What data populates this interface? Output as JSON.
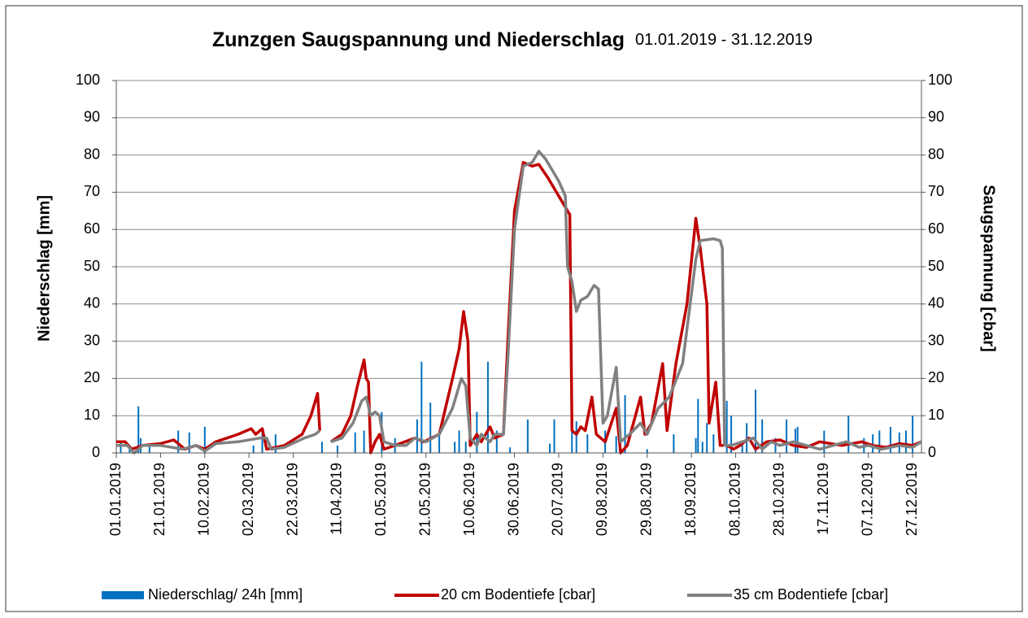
{
  "chart_data": {
    "type": "combo",
    "title": "Zunzgen Saugspannung und Niederschlag",
    "subtitle": "01.01.2019 - 31.12.2019",
    "ylabel": "Niederschlag [mm]",
    "y2label": "Saugspannung [cbar]",
    "xlim": [
      "01.01.2019",
      "31.12.2019"
    ],
    "xticks": [
      "01.01.2019",
      "21.01.2019",
      "10.02.2019",
      "02.03.2019",
      "22.03.2019",
      "11.04.2019",
      "01.05.2019",
      "21.05.2019",
      "10.06.2019",
      "30.06.2019",
      "20.07.2019",
      "09.08.2019",
      "29.08.2019",
      "18.09.2019",
      "08.10.2019",
      "28.10.2019",
      "17.11.2019",
      "07.12.2019",
      "27.12.2019"
    ],
    "ylim": [
      0,
      100
    ],
    "yticks": [
      0,
      10,
      20,
      30,
      40,
      50,
      60,
      70,
      80,
      90,
      100
    ],
    "y2lim": [
      0,
      100
    ],
    "y2ticks": [
      0,
      10,
      20,
      30,
      40,
      50,
      60,
      70,
      80,
      90,
      100
    ],
    "grid": true,
    "legend": "bottom",
    "series": [
      {
        "name": "Niederschlag/ 24h [mm]",
        "type": "bar",
        "color": "#0070c0",
        "x": [
          "03.01.2019",
          "07.01.2019",
          "11.01.2019",
          "12.01.2019",
          "16.01.2019",
          "29.01.2019",
          "03.02.2019",
          "10.02.2019",
          "04.03.2019",
          "08.03.2019",
          "14.03.2019",
          "04.04.2019",
          "11.04.2019",
          "19.04.2019",
          "23.04.2019",
          "01.05.2019",
          "07.05.2019",
          "17.05.2019",
          "19.05.2019",
          "23.05.2019",
          "27.05.2019",
          "03.06.2019",
          "05.06.2019",
          "08.06.2019",
          "13.06.2019",
          "18.06.2019",
          "22.06.2019",
          "28.06.2019",
          "06.07.2019",
          "16.07.2019",
          "18.07.2019",
          "26.07.2019",
          "28.07.2019",
          "02.08.2019",
          "10.08.2019",
          "15.08.2019",
          "19.08.2019",
          "29.08.2019",
          "10.09.2019",
          "20.09.2019",
          "21.09.2019",
          "23.09.2019",
          "25.09.2019",
          "28.09.2019",
          "04.10.2019",
          "06.10.2019",
          "11.10.2019",
          "13.10.2019",
          "17.10.2019",
          "20.10.2019",
          "26.10.2019",
          "31.10.2019",
          "04.11.2019",
          "05.11.2019",
          "17.11.2019",
          "28.11.2019",
          "05.12.2019",
          "09.12.2019",
          "12.12.2019",
          "17.12.2019",
          "21.12.2019",
          "24.12.2019",
          "27.12.2019"
        ],
        "values": [
          3,
          2,
          12.5,
          4,
          2,
          6,
          5.5,
          7,
          2,
          6.5,
          5,
          3,
          2,
          5.5,
          6,
          11,
          4,
          9,
          24.5,
          13.5,
          6,
          3,
          6,
          3,
          11,
          24.5,
          6,
          1.5,
          9,
          2.5,
          9,
          6,
          8.5,
          5,
          6,
          4.5,
          15.5,
          1,
          5,
          4,
          14.5,
          3,
          8,
          5,
          14,
          10,
          3,
          8,
          17,
          9,
          4,
          9,
          6.5,
          7,
          6,
          10,
          4,
          5,
          6,
          7,
          5.5,
          6,
          10
        ]
      },
      {
        "name": "20 cm Bodentiefe [cbar]",
        "type": "line",
        "axis": "y2",
        "color": "#c00000",
        "x": [
          "01.01.2019",
          "05.01.2019",
          "08.01.2019",
          "13.01.2019",
          "21.01.2019",
          "27.01.2019",
          "30.01.2019",
          "01.02.2019",
          "06.02.2019",
          "10.02.2019",
          "15.02.2019",
          "25.02.2019",
          "03.03.2019",
          "05.03.2019",
          "08.03.2019",
          "10.03.2019",
          "18.03.2019",
          "26.03.2019",
          "30.03.2019",
          "02.04.2019",
          "03.04.2019",
          "05.04.2019",
          "08.04.2019",
          "13.04.2019",
          "17.04.2019",
          "20.04.2019",
          "23.04.2019",
          "24.04.2019",
          "25.04.2019",
          "26.04.2019",
          "28.04.2019",
          "30.04.2019",
          "02.05.2019",
          "07.05.2019",
          "16.05.2019",
          "20.05.2019",
          "27.05.2019",
          "02.06.2019",
          "05.06.2019",
          "07.06.2019",
          "09.06.2019",
          "10.06.2019",
          "13.06.2019",
          "15.06.2019",
          "19.06.2019",
          "21.06.2019",
          "25.06.2019",
          "27.06.2019",
          "30.06.2019",
          "04.07.2019",
          "08.07.2019",
          "11.07.2019",
          "15.07.2019",
          "19.07.2019",
          "23.07.2019",
          "25.07.2019",
          "26.07.2019",
          "28.07.2019",
          "30.07.2019",
          "01.08.2019",
          "04.08.2019",
          "06.08.2019",
          "10.08.2019",
          "15.08.2019",
          "17.08.2019",
          "20.08.2019",
          "26.08.2019",
          "28.08.2019",
          "31.08.2019",
          "05.09.2019",
          "07.09.2019",
          "11.09.2019",
          "16.09.2019",
          "20.09.2019",
          "22.09.2019",
          "25.09.2019",
          "26.09.2019",
          "29.09.2019",
          "01.10.2019",
          "04.10.2019",
          "07.10.2019",
          "10.10.2019",
          "14.10.2019",
          "17.10.2019",
          "22.10.2019",
          "28.10.2019",
          "03.11.2019",
          "09.11.2019",
          "15.11.2019",
          "25.11.2019",
          "04.12.2019",
          "09.12.2019",
          "15.12.2019",
          "21.12.2019",
          "27.12.2019",
          "31.12.2019"
        ],
        "values": [
          3,
          3,
          1,
          2,
          2.5,
          3.5,
          2,
          1,
          2,
          1,
          3,
          5,
          6.5,
          5,
          6.5,
          1,
          2,
          5,
          10,
          16,
          6,
          null,
          3,
          5,
          10,
          18,
          25,
          20,
          19,
          0,
          3,
          5,
          1,
          2,
          4,
          3,
          5,
          20,
          28,
          38,
          30,
          2,
          5,
          3,
          7,
          4,
          5,
          30,
          65,
          78,
          77,
          77.5,
          74,
          70,
          66,
          64,
          6,
          5,
          7,
          6,
          15,
          5,
          3,
          12,
          0,
          2,
          15,
          5,
          8,
          24,
          6,
          24,
          40,
          63,
          55,
          40,
          8,
          19,
          2,
          2,
          1,
          2,
          4,
          1,
          3,
          3.5,
          2,
          1.5,
          3,
          2,
          3,
          2,
          1.5,
          2.5,
          2,
          3
        ]
      },
      {
        "name": "35 cm Bodentiefe [cbar]",
        "type": "line",
        "axis": "y2",
        "color": "#808080",
        "x": [
          "01.01.2019",
          "06.01.2019",
          "09.01.2019",
          "13.01.2019",
          "21.01.2019",
          "31.01.2019",
          "06.02.2019",
          "10.02.2019",
          "15.02.2019",
          "25.02.2019",
          "07.03.2019",
          "10.03.2019",
          "12.03.2019",
          "18.03.2019",
          "27.03.2019",
          "01.04.2019",
          "03.04.2019",
          "05.04.2019",
          "08.04.2019",
          "13.04.2019",
          "18.04.2019",
          "22.04.2019",
          "24.04.2019",
          "26.04.2019",
          "28.04.2019",
          "30.04.2019",
          "02.05.2019",
          "07.05.2019",
          "12.05.2019",
          "16.05.2019",
          "21.05.2019",
          "27.05.2019",
          "02.06.2019",
          "06.06.2019",
          "08.06.2019",
          "10.06.2019",
          "13.06.2019",
          "15.06.2019",
          "19.06.2019",
          "21.06.2019",
          "25.06.2019",
          "27.06.2019",
          "30.06.2019",
          "04.07.2019",
          "08.07.2019",
          "11.07.2019",
          "14.07.2019",
          "17.07.2019",
          "20.07.2019",
          "23.07.2019",
          "24.07.2019",
          "26.07.2019",
          "28.07.2019",
          "30.07.2019",
          "02.08.2019",
          "05.08.2019",
          "07.08.2019",
          "09.08.2019",
          "11.08.2019",
          "15.08.2019",
          "17.08.2019",
          "21.08.2019",
          "26.08.2019",
          "29.08.2019",
          "03.09.2019",
          "08.09.2019",
          "14.09.2019",
          "20.09.2019",
          "22.09.2019",
          "28.09.2019",
          "01.10.2019",
          "02.10.2019",
          "03.10.2019",
          "06.10.2019",
          "11.10.2019",
          "16.10.2019",
          "20.10.2019",
          "24.10.2019",
          "28.10.2019",
          "03.11.2019",
          "09.11.2019",
          "15.11.2019",
          "21.11.2019",
          "27.11.2019",
          "03.12.2019",
          "07.12.2019",
          "13.12.2019",
          "21.12.2019",
          "27.12.2019",
          "31.12.2019"
        ],
        "values": [
          2,
          2,
          0,
          2,
          2,
          1,
          2,
          0.5,
          2.5,
          3,
          4,
          4,
          1,
          1.5,
          4,
          5,
          6,
          null,
          3,
          4,
          8,
          14,
          15,
          10,
          11,
          10,
          3,
          2,
          2,
          4,
          3,
          5,
          12,
          20,
          18,
          4,
          2,
          5,
          3,
          5,
          5,
          25,
          60,
          77,
          78,
          81,
          79,
          76,
          73,
          69,
          50,
          46,
          38,
          41,
          42,
          45,
          44,
          8,
          10,
          23,
          3,
          5,
          8,
          5,
          12,
          15,
          24,
          52,
          57,
          57.5,
          57,
          55,
          2,
          2,
          3,
          4,
          1,
          3,
          2,
          3,
          2,
          1,
          2,
          3,
          1.5,
          2,
          1,
          2,
          1.5,
          3
        ]
      }
    ]
  }
}
